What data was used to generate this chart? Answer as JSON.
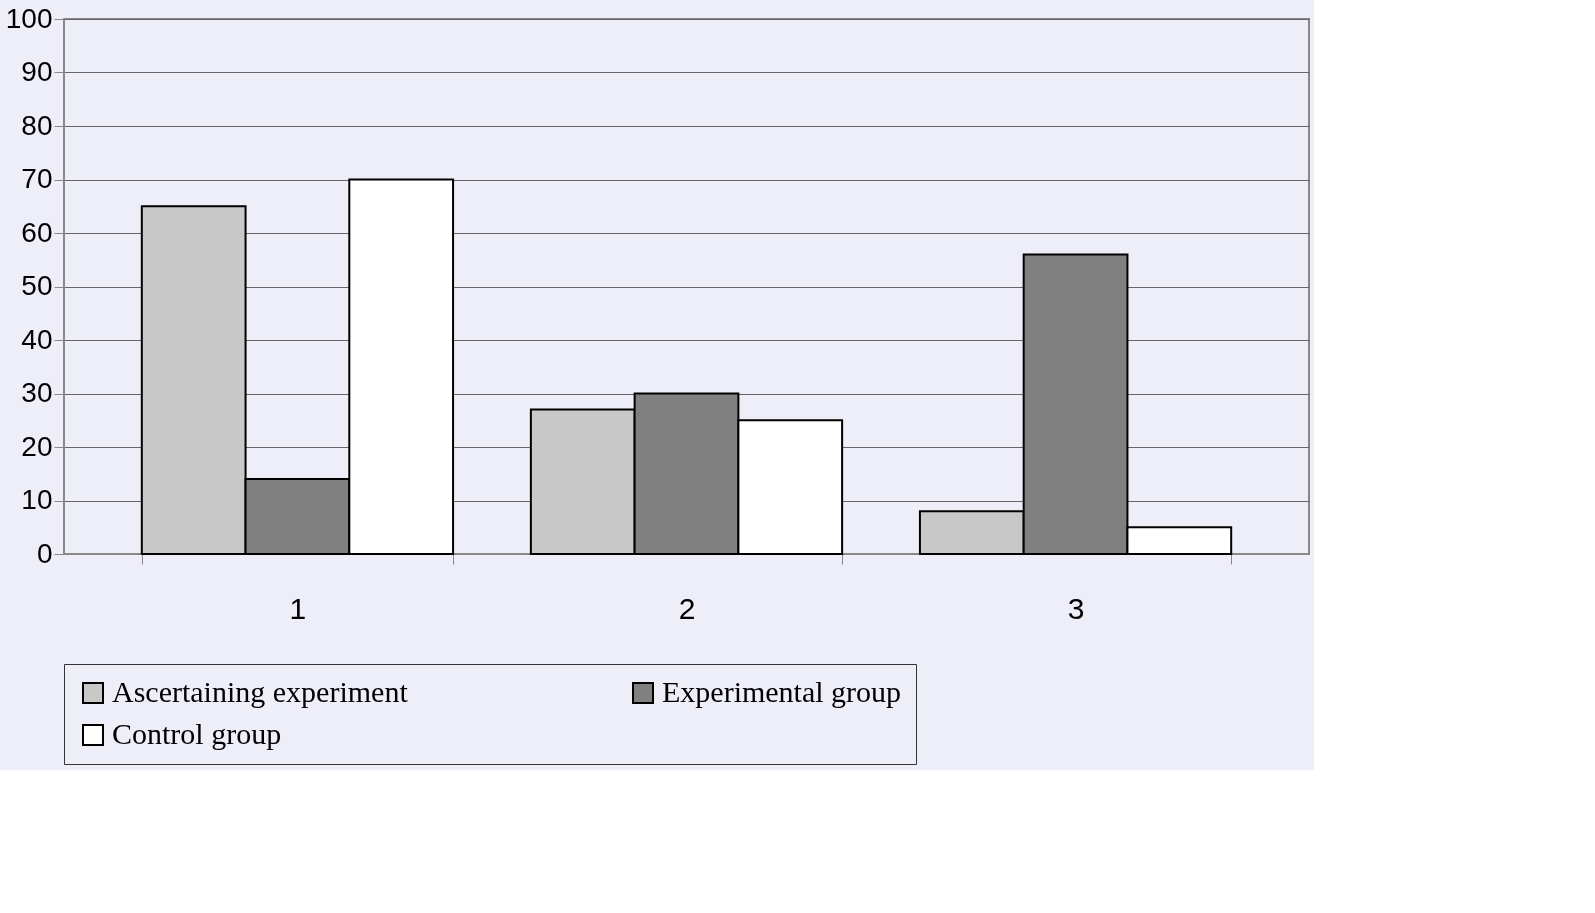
{
  "chart_data": {
    "type": "bar",
    "categories": [
      "1",
      "2",
      "3"
    ],
    "series": [
      {
        "name": "Ascertaining experiment",
        "color": "#c8c8c8",
        "values": [
          65,
          27,
          8
        ]
      },
      {
        "name": "Experimental group",
        "color": "#808080",
        "values": [
          14,
          30,
          56
        ]
      },
      {
        "name": "Control group",
        "color": "#ffffff",
        "values": [
          70,
          25,
          5
        ]
      }
    ],
    "ylim": [
      0,
      100
    ],
    "yticks": [
      0,
      10,
      20,
      30,
      40,
      50,
      60,
      70,
      80,
      90,
      100
    ],
    "grid": "y",
    "legend": "bottom"
  }
}
